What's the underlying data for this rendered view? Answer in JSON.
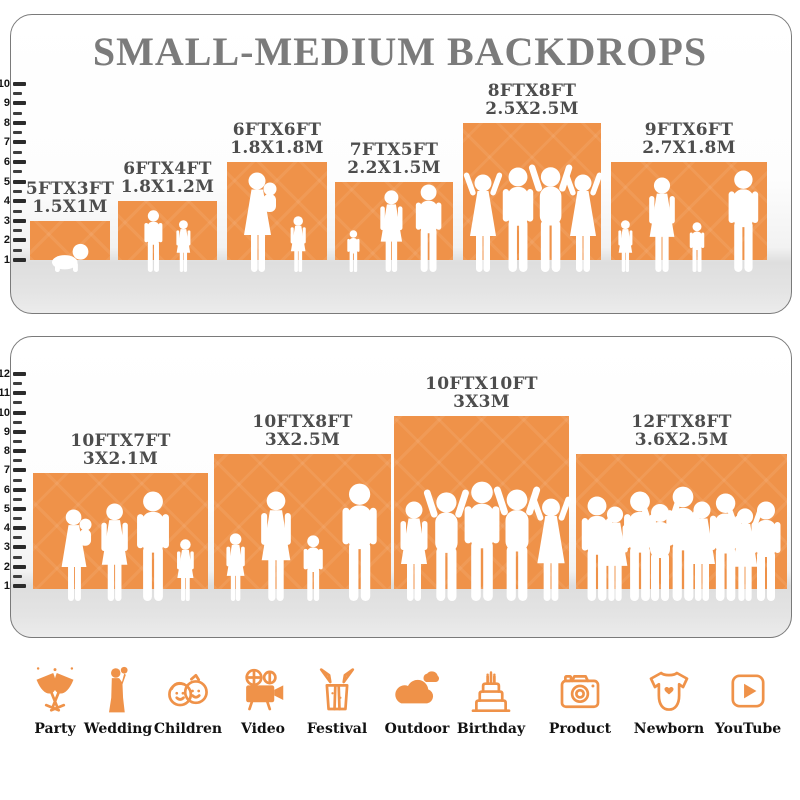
{
  "title": "SMALL-MEDIUM BACKDROPS",
  "colors": {
    "accent_orange": "#EF9249",
    "title_gray": "#7B7B7B",
    "size_label_gray": "#4D4D4D",
    "panel_border": "#7A7A7A",
    "floor_gray": "#E4E4E4",
    "tick_black": "#2B2B2B",
    "icon_label_black": "#111111",
    "silhouette_white": "#FFFFFF"
  },
  "chart_data": [
    {
      "type": "bar",
      "title": "SMALL-MEDIUM BACKDROPS",
      "categories": [
        "5FTX3FT",
        "6FTX4FT",
        "6FTX6FT",
        "7FTX5FT",
        "8FTX8FT",
        "9FTX6FT"
      ],
      "labels_m": [
        "1.5X1M",
        "1.8X1.2M",
        "1.8X1.8M",
        "2.2X1.5M",
        "2.5X2.5M",
        "2.7X1.8M"
      ],
      "values": [
        3,
        4,
        6,
        5,
        8,
        6
      ],
      "widths_ft": [
        5,
        6,
        6,
        7,
        8,
        9
      ],
      "xlabel": "",
      "ylabel": "",
      "ylim": [
        1,
        10
      ],
      "yticks": [
        1,
        2,
        3,
        4,
        5,
        6,
        7,
        8,
        9,
        10
      ],
      "grid": false,
      "legend": "none"
    },
    {
      "type": "bar",
      "title": "",
      "categories": [
        "10FTX7FT",
        "10FTX8FT",
        "10FTX10FT",
        "12FTX8FT"
      ],
      "labels_m": [
        "3X2.1M",
        "3X2.5M",
        "3X3M",
        "3.6X2.5M"
      ],
      "values": [
        7,
        8,
        10,
        8
      ],
      "widths_ft": [
        10,
        10,
        10,
        12
      ],
      "xlabel": "",
      "ylabel": "",
      "ylim": [
        1,
        12
      ],
      "yticks": [
        1,
        2,
        3,
        4,
        5,
        6,
        7,
        8,
        9,
        10,
        11,
        12
      ],
      "grid": false,
      "legend": "none"
    }
  ],
  "category_icons": [
    {
      "label": "Party",
      "icon": "party-icon"
    },
    {
      "label": "Wedding",
      "icon": "wedding-icon"
    },
    {
      "label": "Children",
      "icon": "children-icon"
    },
    {
      "label": "Video",
      "icon": "video-icon"
    },
    {
      "label": "Festival",
      "icon": "festival-icon"
    },
    {
      "label": "Outdoor",
      "icon": "outdoor-icon"
    },
    {
      "label": "Birthday",
      "icon": "birthday-icon"
    },
    {
      "label": "Product",
      "icon": "product-icon"
    },
    {
      "label": "Newborn",
      "icon": "newborn-icon"
    },
    {
      "label": "YouTube",
      "icon": "youtube-icon"
    }
  ]
}
